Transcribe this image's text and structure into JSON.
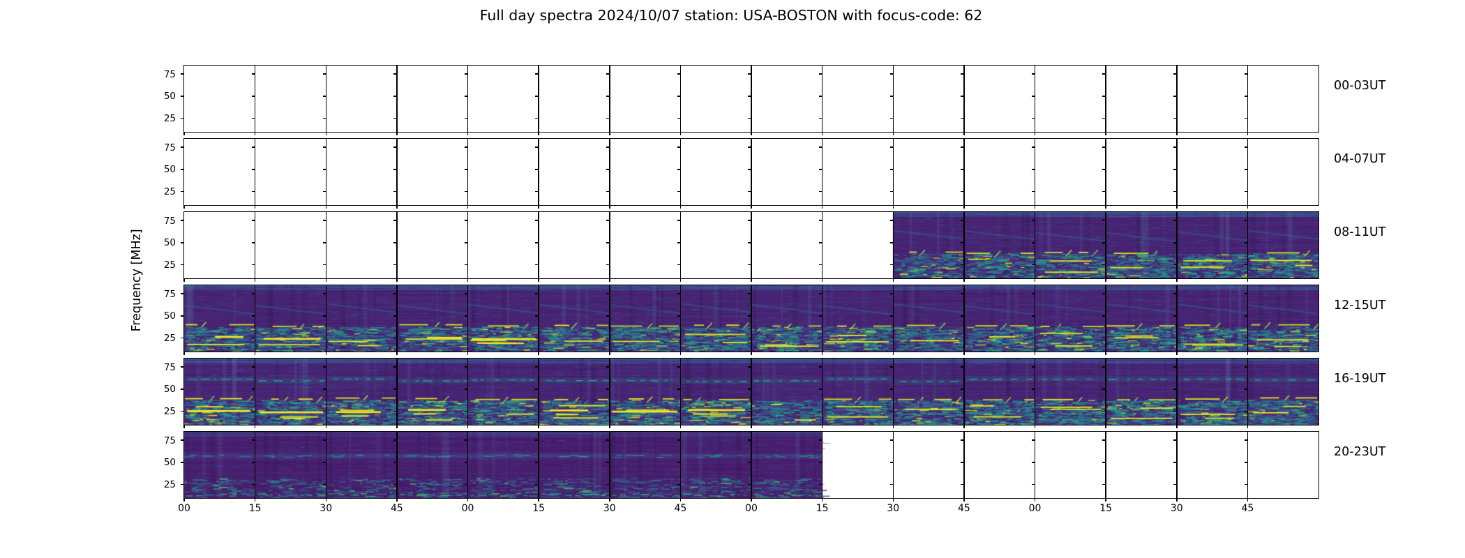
{
  "title": "Full day spectra 2024/10/07 station: USA-BOSTON with focus-code: 62",
  "y_axis": {
    "label": "Frequency [MHz]",
    "ticks": [
      "75",
      "50",
      "25"
    ]
  },
  "x_axis": {
    "tick_labels": [
      "00",
      "15",
      "30",
      "45",
      "00",
      "15",
      "30",
      "45",
      "00",
      "15",
      "30",
      "45",
      "00",
      "15",
      "30",
      "45"
    ]
  },
  "rows": [
    {
      "label": "00-03UT",
      "data_panel_start": null,
      "data_panel_end": null,
      "texture": null
    },
    {
      "label": "04-07UT",
      "data_panel_start": null,
      "data_panel_end": null,
      "texture": null
    },
    {
      "label": "08-11UT",
      "data_panel_start": 10,
      "data_panel_end": 15,
      "texture": {
        "seed": 311,
        "diagonal": true,
        "chain": true,
        "mid_dash": false,
        "mid_band": false,
        "dark": false,
        "bottom_density": 0.9,
        "bright_lines": 2,
        "bright_thick_until": null
      }
    },
    {
      "label": "12-15UT",
      "data_panel_start": 0,
      "data_panel_end": 15,
      "texture": {
        "seed": 477,
        "diagonal": true,
        "chain": true,
        "mid_dash": false,
        "mid_band": false,
        "dark": false,
        "bottom_density": 1.0,
        "bright_lines": 2,
        "bright_thick_until": 4
      }
    },
    {
      "label": "16-19UT",
      "data_panel_start": 0,
      "data_panel_end": 15,
      "texture": {
        "seed": 593,
        "diagonal": false,
        "chain": true,
        "mid_dash": true,
        "mid_band": false,
        "dark": false,
        "bottom_density": 1.0,
        "bright_lines": 2,
        "bright_thick_until": 7
      }
    },
    {
      "label": "20-23UT",
      "data_panel_start": 0,
      "data_panel_end": 8,
      "texture": {
        "seed": 737,
        "diagonal": false,
        "chain": false,
        "mid_dash": false,
        "mid_band": true,
        "dark": true,
        "bottom_density": 0.35,
        "bright_lines": 0,
        "bright_thick_until": null
      }
    }
  ],
  "colormap_viridis": [
    "#440154",
    "#471d6d",
    "#472f7d",
    "#3e4c8a",
    "#355e8d",
    "#2d708e",
    "#26828e",
    "#21918c",
    "#1fa188",
    "#28ae80",
    "#3fbc73",
    "#5ec962",
    "#84d44b",
    "#addc30",
    "#d8e219",
    "#fde725"
  ],
  "chart_data": {
    "type": "heatmap",
    "title": "Full day spectra 2024/10/07 station: USA-BOSTON with focus-code: 62",
    "date": "2024/10/07",
    "station": "USA-BOSTON",
    "focus_code": "62",
    "colormap": "viridis",
    "ylabel": "Frequency [MHz]",
    "y_ticks_mhz": [
      25,
      50,
      75
    ],
    "y_range_mhz": [
      10,
      85
    ],
    "x_tick_minute_labels": [
      "00",
      "15",
      "30",
      "45"
    ],
    "panels_per_row": 16,
    "minutes_per_panel": 15,
    "grid": "panel borders only",
    "legend": "none",
    "rows": [
      {
        "label": "00-03UT",
        "panels_with_data": 0,
        "data_panel_start": null,
        "data_panel_end": null,
        "coverage": "no data (all panels blank)"
      },
      {
        "label": "04-07UT",
        "panels_with_data": 0,
        "data_panel_start": null,
        "data_panel_end": null,
        "coverage": "no data (all panels blank)"
      },
      {
        "label": "08-11UT",
        "panels_with_data": 6,
        "data_panel_start": 10,
        "data_panel_end": 15,
        "coverage": "spectra from 10:30 UT to end of row"
      },
      {
        "label": "12-15UT",
        "panels_with_data": 16,
        "data_panel_start": 0,
        "data_panel_end": 15,
        "coverage": "full coverage"
      },
      {
        "label": "16-19UT",
        "panels_with_data": 16,
        "data_panel_start": 0,
        "data_panel_end": 15,
        "coverage": "full coverage"
      },
      {
        "label": "20-23UT",
        "panels_with_data": 9,
        "data_panel_start": 0,
        "data_panel_end": 8,
        "coverage": "spectra until 22:15 UT, blank after"
      }
    ]
  }
}
